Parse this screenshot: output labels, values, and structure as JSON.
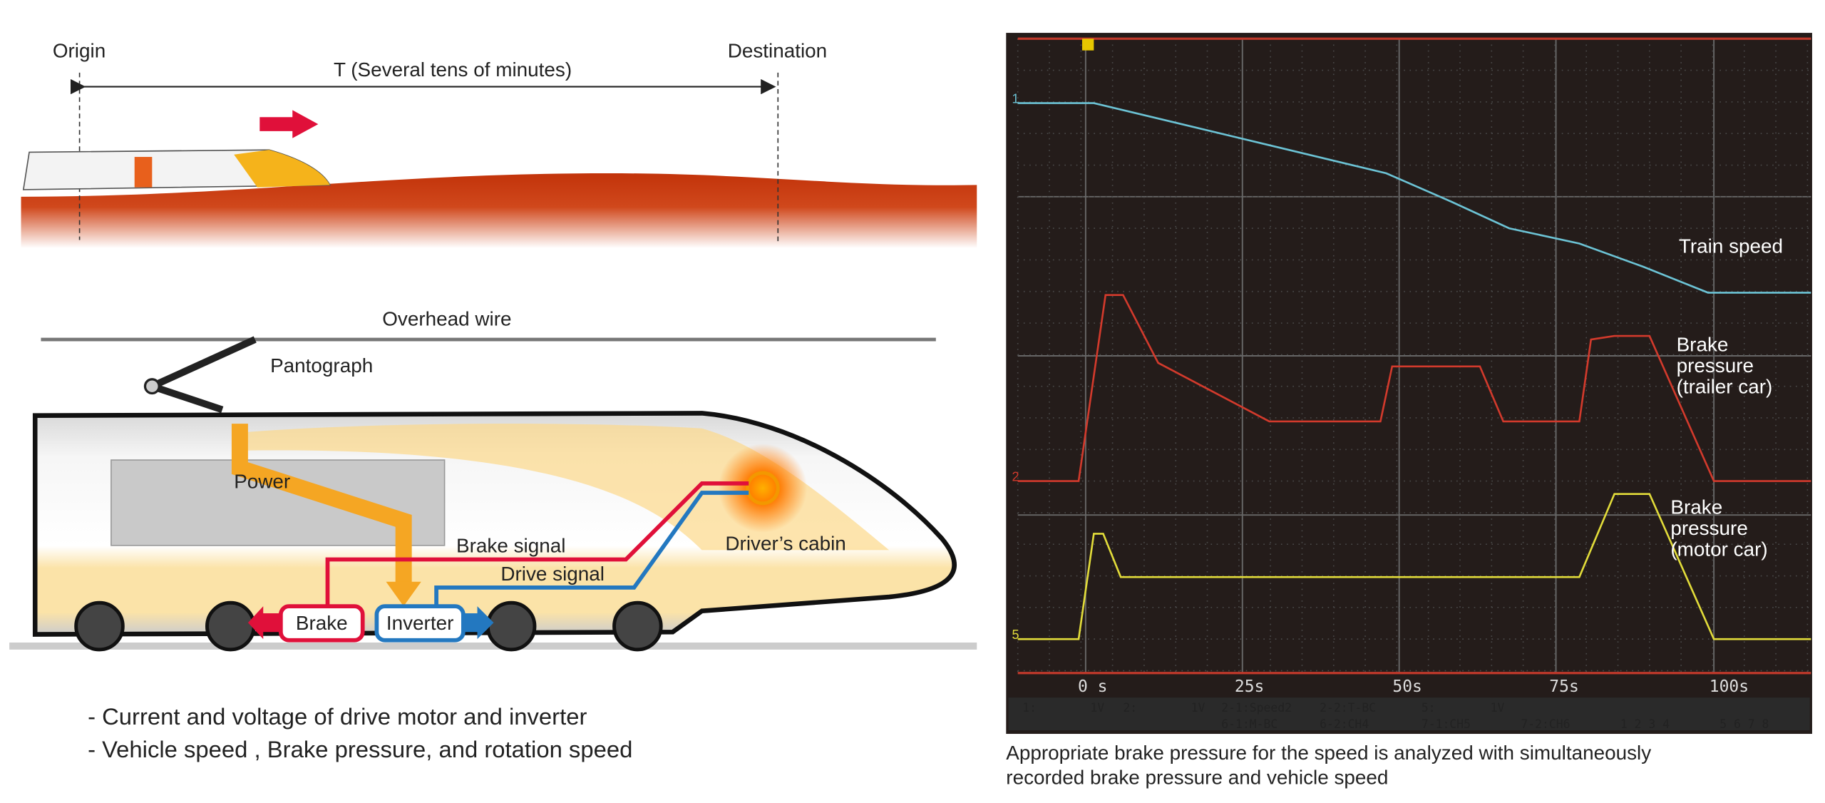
{
  "journey": {
    "origin": "Origin",
    "destination": "Destination",
    "duration": "T (Several tens of minutes)"
  },
  "train": {
    "overhead_wire": "Overhead wire",
    "pantograph": "Pantograph",
    "power": "Power",
    "brake_signal": "Brake signal",
    "drive_signal": "Drive signal",
    "drivers_cabin": "Driver’s cabin",
    "brake": "Brake",
    "inverter": "Inverter"
  },
  "bullets": [
    "- Current and voltage of drive motor and inverter",
    "- Vehicle speed , Brake pressure, and rotation speed"
  ],
  "scope": {
    "trace_labels": [
      [
        "Train speed"
      ],
      [
        "Brake",
        "pressure",
        "(trailer car)"
      ],
      [
        "Brake",
        "pressure",
        "(motor car)"
      ]
    ],
    "channel_markers": [
      "1",
      "2",
      "5"
    ],
    "x_labels": [
      "0 s",
      "25s",
      "50s",
      "75s",
      "100s"
    ],
    "status_row1": [
      "1:",
      "1V",
      "2:",
      "1V",
      "2-1:Speed2",
      "2-2:T-BC",
      "5:",
      "1V"
    ],
    "status_row2": [
      "6-1:M-BC",
      "6-2:CH4",
      "7-1:CH5",
      "7-2:CH6",
      "1 2 3 4",
      "5 6 7 8"
    ]
  },
  "caption": [
    "Appropriate brake pressure for the speed is analyzed with simultaneously",
    "recorded brake pressure and vehicle speed"
  ]
}
